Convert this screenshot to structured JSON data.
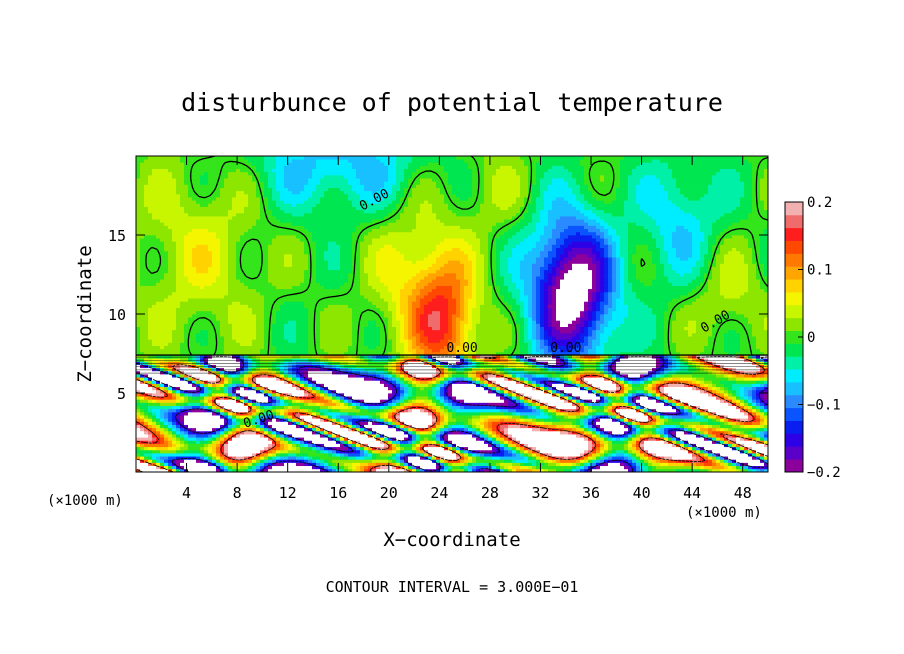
{
  "chart_data": {
    "type": "heatmap",
    "title": "disturbunce of potential temperature",
    "xlabel": "X−coordinate",
    "ylabel": "Z−coordinate",
    "x_unit_left": "(×1000 m)",
    "x_unit_right": "(×1000 m)",
    "xlim": [
      0,
      50
    ],
    "ylim": [
      0,
      20
    ],
    "x_ticks": [
      {
        "value": 4,
        "label": "4"
      },
      {
        "value": 8,
        "label": "8"
      },
      {
        "value": 12,
        "label": "12"
      },
      {
        "value": 16,
        "label": "16"
      },
      {
        "value": 20,
        "label": "20"
      },
      {
        "value": 24,
        "label": "24"
      },
      {
        "value": 28,
        "label": "28"
      },
      {
        "value": 32,
        "label": "32"
      },
      {
        "value": 36,
        "label": "36"
      },
      {
        "value": 40,
        "label": "40"
      },
      {
        "value": 44,
        "label": "44"
      },
      {
        "value": 48,
        "label": "48"
      }
    ],
    "y_ticks": [
      {
        "value": 5,
        "label": "5"
      },
      {
        "value": 10,
        "label": "10"
      },
      {
        "value": 15,
        "label": "15"
      }
    ],
    "colorbar": {
      "range": [
        -0.2,
        0.2
      ],
      "ticks": [
        {
          "value": 0.2,
          "label": "0.2"
        },
        {
          "value": 0.1,
          "label": "0.1"
        },
        {
          "value": 0,
          "label": "0"
        },
        {
          "value": -0.1,
          "label": "−0.1"
        },
        {
          "value": -0.2,
          "label": "−0.2"
        }
      ],
      "colors": [
        "#8c009c",
        "#5a00c8",
        "#2d00e6",
        "#0a1ef0",
        "#0a55ff",
        "#2a8aff",
        "#18c0ff",
        "#00ecff",
        "#00f0a8",
        "#00e650",
        "#33e51a",
        "#8ce600",
        "#c8f500",
        "#f5f500",
        "#ffd200",
        "#ffa500",
        "#ff7800",
        "#ff4800",
        "#ff1e1e",
        "#f06c6c",
        "#f2b0b0"
      ]
    },
    "contour_labels": [
      "0.00",
      "0.00",
      "0.00",
      "0.00",
      "0.00"
    ],
    "contour_interval_text": "CONTOUR INTERVAL = 3.000E−01",
    "field": {
      "upper_layer_base": 7.4,
      "blobs": [
        {
          "x": 34.5,
          "z": 11.5,
          "sx": 3.2,
          "sz": 4.5,
          "amp": -0.23
        },
        {
          "x": 24.5,
          "z": 9.5,
          "sx": 2.6,
          "sz": 4.0,
          "amp": 0.13
        },
        {
          "x": 22.0,
          "z": 12.0,
          "sx": 3.5,
          "sz": 5.0,
          "amp": 0.06
        },
        {
          "x": 16.0,
          "z": 19.5,
          "sx": 7.0,
          "sz": 3.0,
          "amp": -0.07
        },
        {
          "x": 43.0,
          "z": 16.0,
          "sx": 3.0,
          "sz": 4.0,
          "amp": -0.06
        },
        {
          "x": 5.0,
          "z": 14.0,
          "sx": 5.0,
          "sz": 6.0,
          "amp": 0.05
        },
        {
          "x": 28.0,
          "z": 18.0,
          "sx": 3.0,
          "sz": 3.0,
          "amp": 0.03
        },
        {
          "x": 47.0,
          "z": 11.0,
          "sx": 3.0,
          "sz": 3.0,
          "amp": 0.04
        }
      ]
    }
  }
}
